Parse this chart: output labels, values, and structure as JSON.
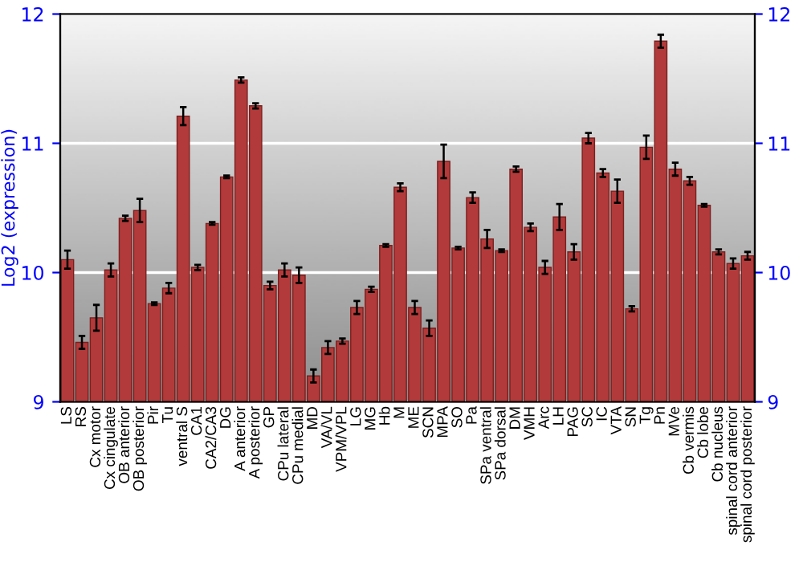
{
  "chart_data": {
    "type": "bar",
    "ylabel": "Log2 (expression)",
    "categories": [
      "LS",
      "RS",
      "Cx motor",
      "Cx cingulate",
      "OB anterior",
      "OB posterior",
      "Pir",
      "Tu",
      "ventral S",
      "CA1",
      "CA2/CA3",
      "DG",
      "A anterior",
      "A posterior",
      "GP",
      "CPu lateral",
      "CPu medial",
      "MD",
      "VA/VL",
      "VPM/VPL",
      "LG",
      "MG",
      "Hb",
      "M",
      "ME",
      "SCN",
      "MPA",
      "SO",
      "Pa",
      "SPa ventral",
      "SPa dorsal",
      "DM",
      "VMH",
      "Arc",
      "LH",
      "PAG",
      "SC",
      "IC",
      "VTA",
      "SN",
      "Tg",
      "Pn",
      "MVe",
      "Cb vermis",
      "Cb lobe",
      "Cb nucleus",
      "spinal cord anterior",
      "spinal cord posterior"
    ],
    "series": [
      {
        "color": "#b33a3a",
        "values": [
          10.1,
          9.46,
          9.65,
          10.02,
          10.42,
          10.48,
          9.76,
          9.88,
          11.21,
          10.04,
          10.38,
          10.74,
          11.49,
          11.29,
          9.9,
          10.02,
          9.98,
          9.2,
          9.42,
          9.47,
          9.73,
          9.87,
          10.21,
          10.66,
          9.73,
          9.57,
          10.86,
          10.19,
          10.58,
          10.26,
          10.17,
          10.8,
          10.35,
          10.04,
          10.43,
          10.16,
          11.04,
          10.77,
          10.63,
          9.72,
          10.97,
          11.79,
          10.8,
          10.71,
          10.52,
          10.16,
          10.07,
          10.13
        ],
        "errors": [
          0.07,
          0.05,
          0.1,
          0.05,
          0.02,
          0.09,
          0.01,
          0.04,
          0.07,
          0.02,
          0.01,
          0.01,
          0.02,
          0.02,
          0.03,
          0.05,
          0.06,
          0.05,
          0.05,
          0.02,
          0.05,
          0.02,
          0.01,
          0.03,
          0.05,
          0.06,
          0.13,
          0.01,
          0.04,
          0.07,
          0.01,
          0.02,
          0.03,
          0.05,
          0.1,
          0.06,
          0.04,
          0.03,
          0.09,
          0.02,
          0.09,
          0.05,
          0.05,
          0.03,
          0.01,
          0.02,
          0.04,
          0.03
        ]
      }
    ],
    "ylim": [
      9,
      12
    ],
    "yticks": [
      9,
      10,
      11,
      12
    ],
    "y2lim": [
      9,
      12
    ],
    "y2ticks": [
      9,
      10,
      11,
      12
    ],
    "grid": "y",
    "legend": false
  }
}
